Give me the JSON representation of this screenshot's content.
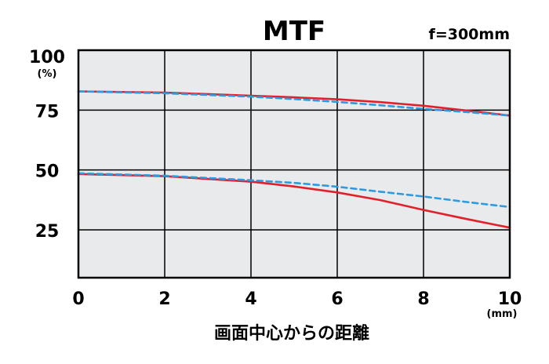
{
  "chart_data": {
    "type": "line",
    "title": "MTF",
    "subtitle": "f=300mm",
    "xlabel": "画面中心からの距離",
    "x_unit": "(mm)",
    "y_unit": "(%)",
    "xlim": [
      0,
      10
    ],
    "ylim": [
      5,
      100
    ],
    "x_ticks": [
      0,
      2,
      4,
      6,
      8,
      10
    ],
    "x_tick_labels": [
      "0",
      "2",
      "4",
      "6",
      "8",
      "10"
    ],
    "y_ticks": [
      25,
      50,
      75,
      100
    ],
    "y_tick_labels": [
      "25",
      "50",
      "75",
      "100"
    ],
    "grid": true,
    "plot_background": "#e9eaec",
    "series": [
      {
        "color": "#e0202a",
        "style": "solid",
        "x": [
          0,
          2,
          4,
          5,
          6,
          7,
          8,
          9,
          10
        ],
        "y": [
          82.8,
          82.3,
          81.0,
          80.3,
          79.5,
          78.3,
          76.8,
          74.8,
          72.7
        ]
      },
      {
        "color": "#2d9be0",
        "style": "dashed",
        "x": [
          0,
          2,
          4,
          5,
          6,
          7,
          8,
          9,
          10
        ],
        "y": [
          82.8,
          82.0,
          80.6,
          79.6,
          78.4,
          77.0,
          75.5,
          74.2,
          72.7
        ]
      },
      {
        "color": "#e0202a",
        "style": "solid",
        "x": [
          0,
          2,
          4,
          5,
          6,
          7,
          8,
          9,
          10
        ],
        "y": [
          48.3,
          47.4,
          45.1,
          43.1,
          40.6,
          37.4,
          33.3,
          29.5,
          25.9
        ]
      },
      {
        "color": "#2d9be0",
        "style": "dashed",
        "x": [
          0,
          2,
          4,
          5,
          6,
          7,
          8,
          9,
          10
        ],
        "y": [
          48.6,
          47.6,
          45.7,
          44.6,
          43.0,
          40.9,
          38.9,
          36.6,
          34.5
        ]
      }
    ]
  }
}
